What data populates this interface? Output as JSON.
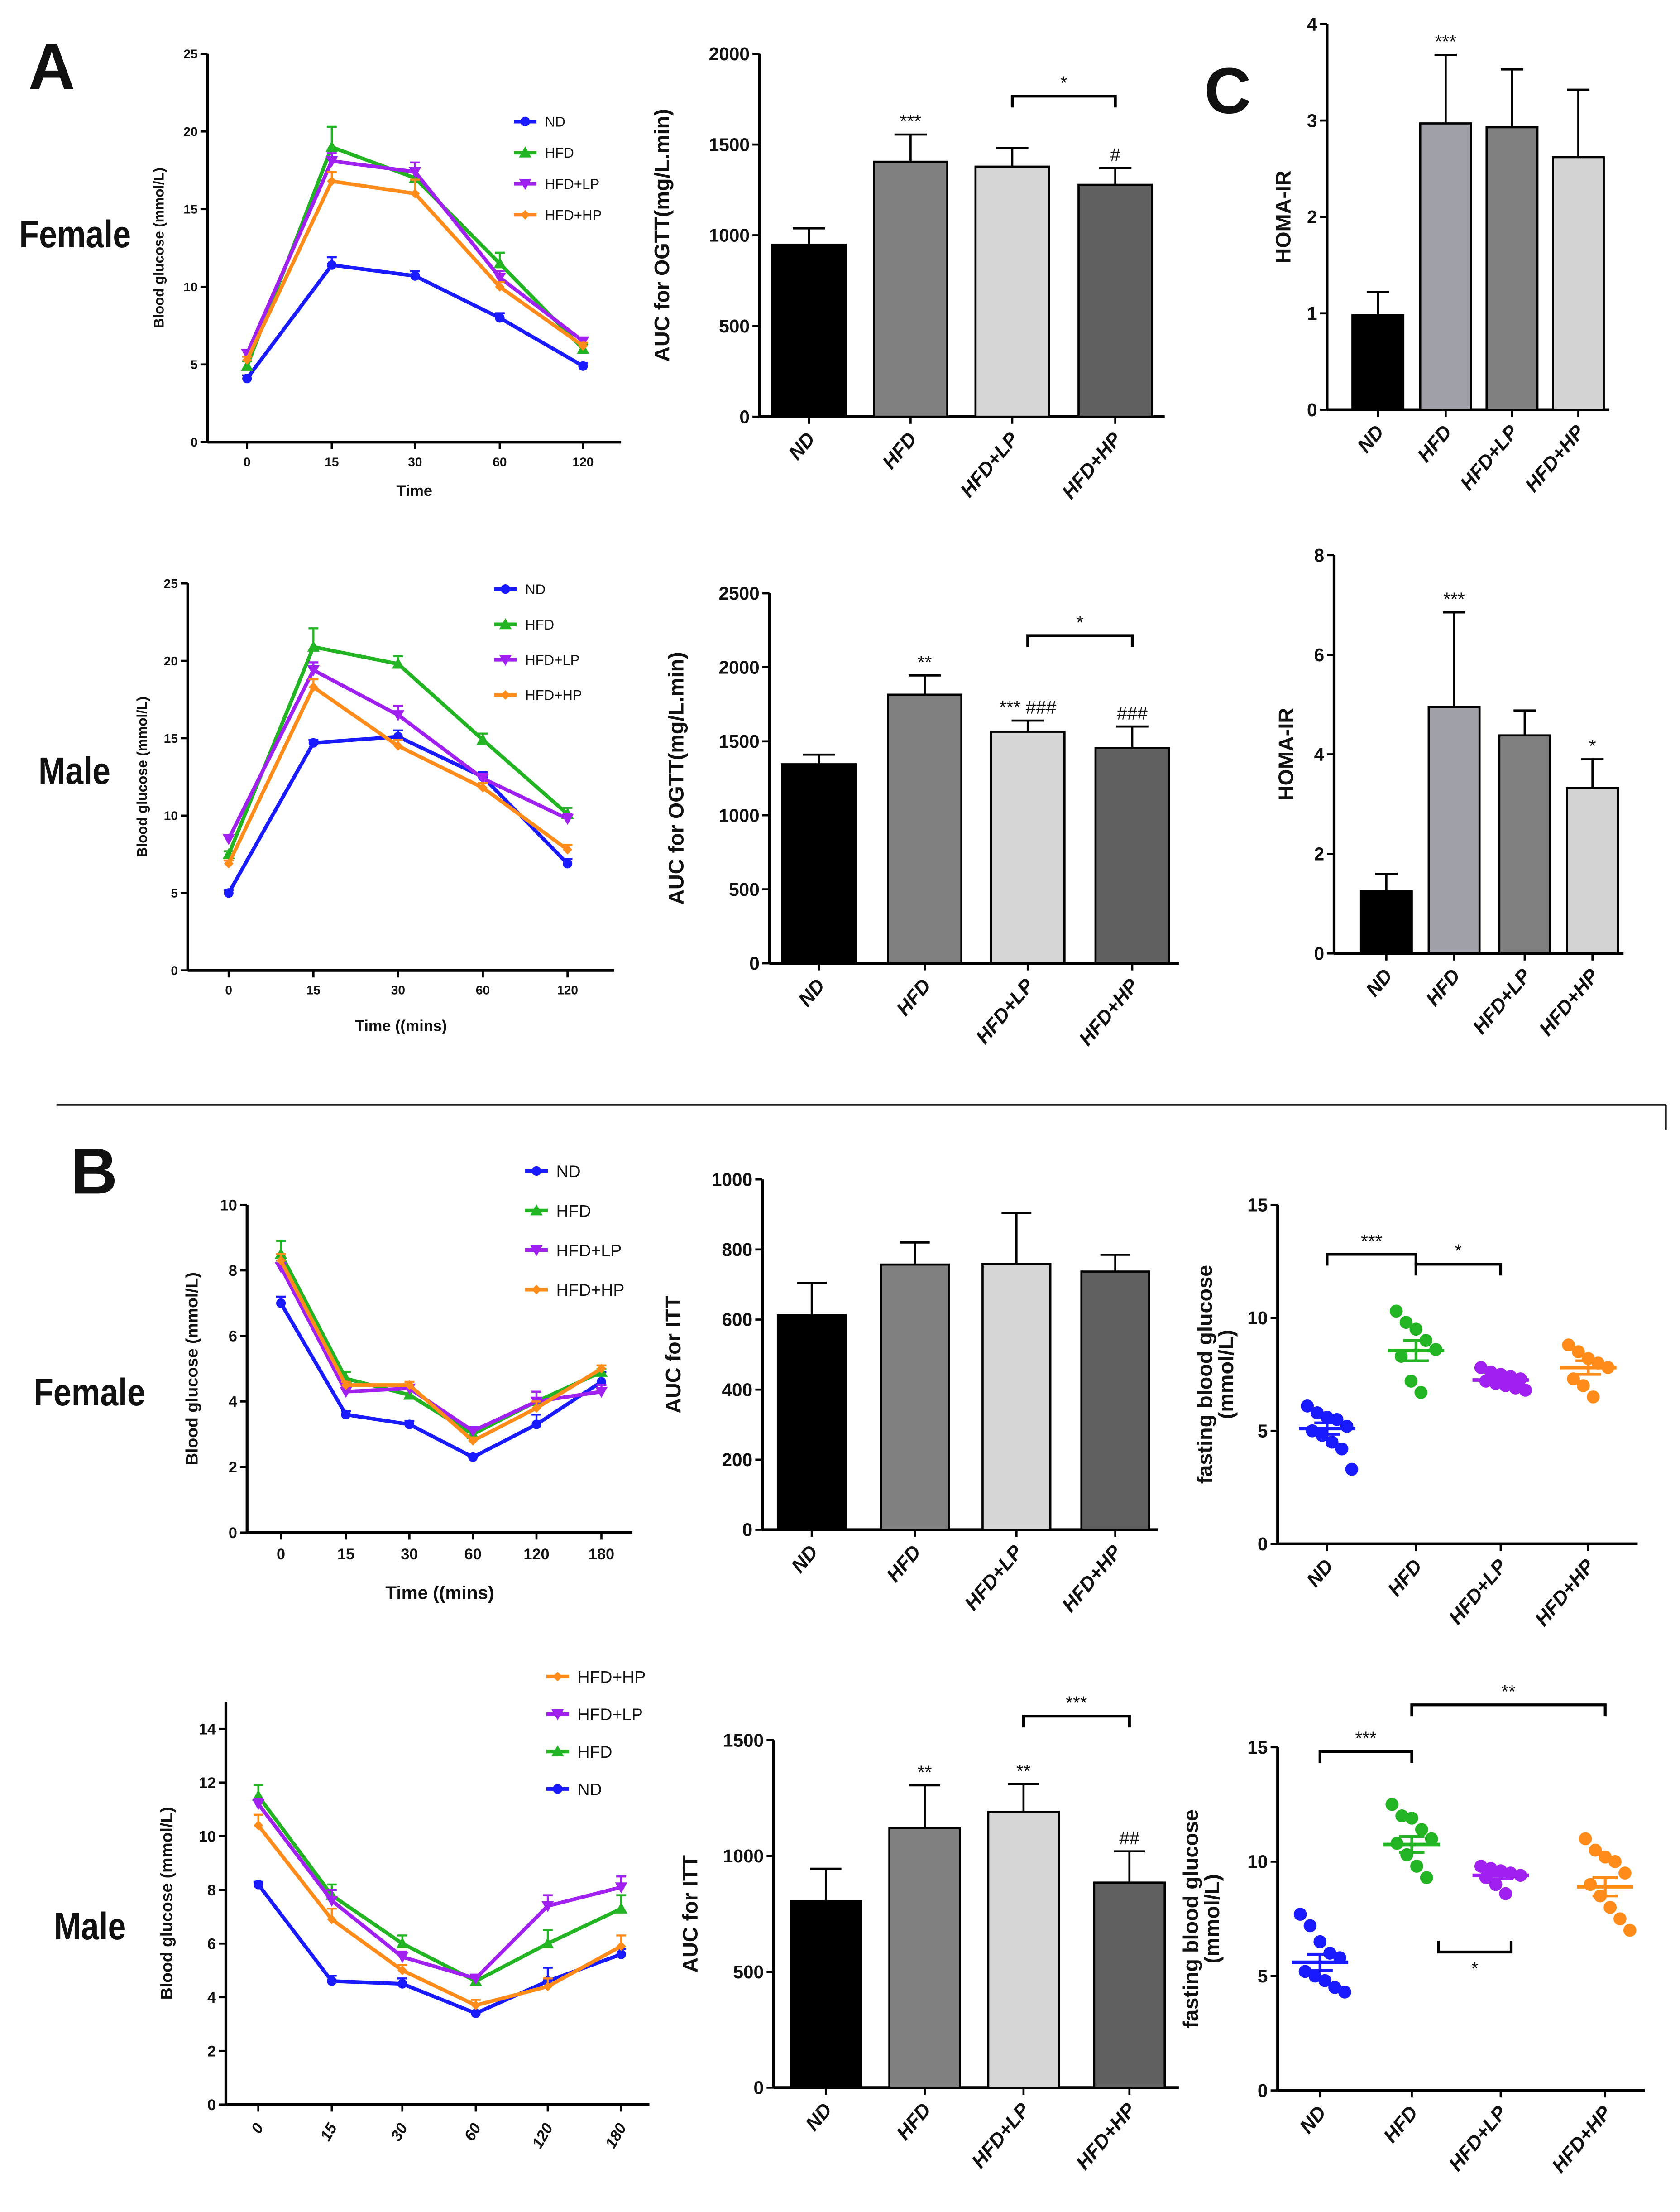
{
  "panels": {
    "A": "A",
    "B": "B",
    "C": "C"
  },
  "rows": {
    "a_female": "Female",
    "a_male": "Male",
    "b_female": "Female",
    "b_male": "Male"
  },
  "chart_data": [
    {
      "id": "ogtt_female",
      "type": "line",
      "ylabel": "Blood glucose (mmol/L)",
      "xlabel": "Time",
      "categories": [
        "0",
        "15",
        "30",
        "60",
        "120"
      ],
      "yticks": [
        0,
        5,
        10,
        15,
        20,
        25
      ],
      "ylim": [
        0,
        25
      ],
      "series": [
        {
          "name": "ND",
          "color": "#1a1aff",
          "marker": "circle",
          "values": [
            4.1,
            11.4,
            10.7,
            8.0,
            4.9
          ],
          "err": [
            0.2,
            0.5,
            0.3,
            0.3,
            0.2
          ]
        },
        {
          "name": "HFD",
          "color": "#22b422",
          "marker": "triangle-up",
          "values": [
            4.9,
            19.0,
            17.0,
            11.5,
            6.0
          ],
          "err": [
            0.3,
            1.3,
            0.6,
            0.7,
            0.3
          ]
        },
        {
          "name": "HFD+LP",
          "color": "#a020f0",
          "marker": "triangle-down",
          "values": [
            5.7,
            18.1,
            17.4,
            10.6,
            6.5
          ],
          "err": [
            0.2,
            0.5,
            0.6,
            0.4,
            0.2
          ]
        },
        {
          "name": "HFD+HP",
          "color": "#ff8c1a",
          "marker": "diamond",
          "values": [
            5.3,
            16.8,
            16.0,
            10.0,
            6.2
          ],
          "err": [
            0.2,
            0.6,
            0.9,
            0.3,
            0.2
          ]
        }
      ]
    },
    {
      "id": "auc_ogtt_female",
      "type": "bar",
      "ylabel": "AUC for OGTT(mg/L.min)",
      "categories": [
        "ND",
        "HFD",
        "HFD+LP",
        "HFD+HP"
      ],
      "yticks": [
        0,
        500,
        1000,
        1500,
        2000
      ],
      "ylim": [
        0,
        2000
      ],
      "values": [
        948,
        1405,
        1378,
        1278
      ],
      "err": [
        90,
        150,
        102,
        92
      ],
      "colors": [
        "#000000",
        "#808080",
        "#d6d6d6",
        "#606060"
      ],
      "annotations": [
        {
          "group": 1,
          "label": "***"
        },
        {
          "group": 3,
          "label": "#"
        }
      ],
      "brackets": [
        {
          "from": 2,
          "to": 3,
          "label": "*"
        }
      ]
    },
    {
      "id": "homa_female",
      "type": "bar",
      "ylabel": "HOMA-IR",
      "categories": [
        "ND",
        "HFD",
        "HFD+LP",
        "HFD+HP"
      ],
      "yticks": [
        0,
        1,
        2,
        3,
        4
      ],
      "ylim": [
        0,
        4
      ],
      "values": [
        0.98,
        2.97,
        2.93,
        2.62
      ],
      "err": [
        0.24,
        0.71,
        0.6,
        0.7
      ],
      "colors": [
        "#000000",
        "#a0a0a8",
        "#808080",
        "#d3d3d3"
      ],
      "annotations": [
        {
          "group": 1,
          "label": "***"
        }
      ],
      "brackets": []
    },
    {
      "id": "ogtt_male",
      "type": "line",
      "ylabel": "Blood glucose (mmol/L)",
      "xlabel": "Time  ((mins)",
      "categories": [
        "0",
        "15",
        "30",
        "60",
        "120"
      ],
      "yticks": [
        0,
        5,
        10,
        15,
        20,
        25
      ],
      "ylim": [
        0,
        25
      ],
      "series": [
        {
          "name": "ND",
          "color": "#1a1aff",
          "marker": "circle",
          "values": [
            5.0,
            14.7,
            15.1,
            12.5,
            6.9
          ],
          "err": [
            0.2,
            0.2,
            0.4,
            0.3,
            0.3
          ]
        },
        {
          "name": "HFD",
          "color": "#22b422",
          "marker": "triangle-up",
          "values": [
            7.5,
            20.9,
            19.8,
            14.9,
            10.1
          ],
          "err": [
            0.2,
            1.2,
            0.5,
            0.4,
            0.4
          ]
        },
        {
          "name": "HFD+LP",
          "color": "#a020f0",
          "marker": "triangle-down",
          "values": [
            8.5,
            19.4,
            16.5,
            12.4,
            9.8
          ],
          "err": [
            0.2,
            0.5,
            0.6,
            0.3,
            0.3
          ]
        },
        {
          "name": "HFD+HP",
          "color": "#ff8c1a",
          "marker": "diamond",
          "values": [
            6.9,
            18.3,
            14.5,
            11.8,
            7.8
          ],
          "err": [
            0.2,
            0.5,
            0.4,
            0.3,
            0.3
          ]
        }
      ]
    },
    {
      "id": "auc_ogtt_male",
      "type": "bar",
      "ylabel": "AUC for OGTT(mg/L.min)",
      "categories": [
        "ND",
        "HFD",
        "HFD+LP",
        "HFD+HP"
      ],
      "yticks": [
        0,
        500,
        1000,
        1500,
        2000,
        2500
      ],
      "ylim": [
        0,
        2500
      ],
      "values": [
        1345,
        1815,
        1565,
        1455
      ],
      "err": [
        65,
        130,
        75,
        145
      ],
      "colors": [
        "#000000",
        "#808080",
        "#d6d6d6",
        "#606060"
      ],
      "annotations": [
        {
          "group": 1,
          "label": "**"
        },
        {
          "group": 2,
          "label": "*** ###"
        },
        {
          "group": 3,
          "label": "###"
        }
      ],
      "brackets": [
        {
          "from": 2,
          "to": 3,
          "label": "*"
        }
      ]
    },
    {
      "id": "homa_male",
      "type": "bar",
      "ylabel": "HOMA-IR",
      "categories": [
        "ND",
        "HFD",
        "HFD+LP",
        "HFD+HP"
      ],
      "yticks": [
        0,
        2,
        4,
        6,
        8
      ],
      "ylim": [
        0,
        8
      ],
      "values": [
        1.25,
        4.95,
        4.38,
        3.32
      ],
      "err": [
        0.35,
        1.9,
        0.5,
        0.58
      ],
      "colors": [
        "#000000",
        "#a0a0a8",
        "#808080",
        "#d3d3d3"
      ],
      "annotations": [
        {
          "group": 1,
          "label": "***"
        },
        {
          "group": 3,
          "label": "*"
        }
      ],
      "brackets": []
    },
    {
      "id": "itt_female",
      "type": "line",
      "ylabel": "Blood glucose (mmol/L)",
      "xlabel": "Time  ((mins)",
      "categories": [
        "0",
        "15",
        "30",
        "60",
        "120",
        "180"
      ],
      "yticks": [
        0,
        2,
        4,
        6,
        8,
        10
      ],
      "ylim": [
        0,
        10
      ],
      "series": [
        {
          "name": "ND",
          "color": "#1a1aff",
          "marker": "circle",
          "values": [
            7.0,
            3.6,
            3.3,
            2.3,
            3.3,
            4.6
          ],
          "err": [
            0.2,
            0.1,
            0.1,
            0.1,
            0.3,
            0.3
          ]
        },
        {
          "name": "HFD",
          "color": "#22b422",
          "marker": "triangle-up",
          "values": [
            8.5,
            4.7,
            4.2,
            3.0,
            4.0,
            4.9
          ],
          "err": [
            0.4,
            0.2,
            0.2,
            0.1,
            0.3,
            0.1
          ]
        },
        {
          "name": "HFD+LP",
          "color": "#a020f0",
          "marker": "triangle-down",
          "values": [
            8.1,
            4.3,
            4.4,
            3.1,
            4.0,
            4.3
          ],
          "err": [
            0.2,
            0.2,
            0.1,
            0.1,
            0.3,
            0.2
          ]
        },
        {
          "name": "HFD+HP",
          "color": "#ff8c1a",
          "marker": "diamond",
          "values": [
            8.3,
            4.5,
            4.5,
            2.8,
            3.8,
            5.0
          ],
          "err": [
            0.2,
            0.1,
            0.1,
            0.1,
            0.2,
            0.1
          ]
        }
      ]
    },
    {
      "id": "auc_itt_female",
      "type": "bar",
      "ylabel": "AUC for ITT",
      "categories": [
        "ND",
        "HFD",
        "HFD+LP",
        "HFD+HP"
      ],
      "yticks": [
        0,
        200,
        400,
        600,
        800,
        1000
      ],
      "ylim": [
        0,
        1000
      ],
      "values": [
        612,
        757,
        758,
        737
      ],
      "err": [
        93,
        63,
        147,
        48
      ],
      "colors": [
        "#000000",
        "#808080",
        "#d6d6d6",
        "#606060"
      ],
      "annotations": [],
      "brackets": []
    },
    {
      "id": "fbg_female",
      "type": "scatter",
      "ylabel": [
        "fasting blood glucose",
        "(mmol/L)"
      ],
      "categories": [
        "ND",
        "HFD",
        "HFD+LP",
        "HFD+HP"
      ],
      "yticks": [
        0,
        5,
        10,
        15
      ],
      "ylim": [
        0,
        15
      ],
      "colors": [
        "#1a1aff",
        "#22b422",
        "#a020f0",
        "#ff8c1a"
      ],
      "groups": [
        {
          "points": [
            6.1,
            5.8,
            5.6,
            5.5,
            5.2,
            5.0,
            4.8,
            4.5,
            4.2,
            3.3
          ],
          "mean": 5.1,
          "sem": 0.25
        },
        {
          "points": [
            10.3,
            9.8,
            9.5,
            9.0,
            8.6,
            8.3,
            7.2,
            6.7
          ],
          "mean": 8.55,
          "sem": 0.45
        },
        {
          "points": [
            7.8,
            7.6,
            7.5,
            7.4,
            7.3,
            7.2,
            7.1,
            7.0,
            6.9,
            6.8
          ],
          "mean": 7.25,
          "sem": 0.15
        },
        {
          "points": [
            8.8,
            8.5,
            8.2,
            8.0,
            7.8,
            7.3,
            7.0,
            6.5
          ],
          "mean": 7.8,
          "sem": 0.3
        }
      ],
      "brackets": [
        {
          "from": 0,
          "to": 1,
          "label": "***"
        },
        {
          "from": 1,
          "to": 2,
          "label": "*"
        }
      ]
    },
    {
      "id": "itt_male",
      "type": "line",
      "ylabel": "Blood glucose (mmol/L)",
      "xlabel": "",
      "categories": [
        "0",
        "15",
        "30",
        "60",
        "120",
        "180"
      ],
      "yticks": [
        0,
        2,
        4,
        6,
        8,
        10,
        12,
        14
      ],
      "ylim": [
        0,
        15
      ],
      "legend_order": [
        3,
        2,
        1,
        0
      ],
      "series": [
        {
          "name": "ND",
          "color": "#1a1aff",
          "marker": "circle",
          "values": [
            8.2,
            4.6,
            4.5,
            3.4,
            4.6,
            5.6
          ],
          "err": [
            0.1,
            0.2,
            0.2,
            0.1,
            0.5,
            0.2
          ]
        },
        {
          "name": "HFD",
          "color": "#22b422",
          "marker": "triangle-up",
          "values": [
            11.5,
            7.8,
            6.0,
            4.6,
            6.0,
            7.3
          ],
          "err": [
            0.4,
            0.4,
            0.3,
            0.1,
            0.5,
            0.5
          ]
        },
        {
          "name": "HFD+LP",
          "color": "#a020f0",
          "marker": "triangle-down",
          "values": [
            11.2,
            7.6,
            5.5,
            4.7,
            7.4,
            8.1
          ],
          "err": [
            0.2,
            0.4,
            0.2,
            0.1,
            0.4,
            0.4
          ]
        },
        {
          "name": "HFD+HP",
          "color": "#ff8c1a",
          "marker": "diamond",
          "values": [
            10.4,
            6.9,
            5.0,
            3.7,
            4.4,
            5.9
          ],
          "err": [
            0.4,
            0.4,
            0.2,
            0.2,
            0.3,
            0.4
          ]
        }
      ]
    },
    {
      "id": "auc_itt_male",
      "type": "bar",
      "ylabel": "AUC for ITT",
      "categories": [
        "ND",
        "HFD",
        "HFD+LP",
        "HFD+HP"
      ],
      "yticks": [
        0,
        500,
        1000,
        1500
      ],
      "ylim": [
        0,
        1500
      ],
      "values": [
        805,
        1120,
        1190,
        885
      ],
      "err": [
        140,
        185,
        120,
        135
      ],
      "colors": [
        "#000000",
        "#808080",
        "#d6d6d6",
        "#606060"
      ],
      "annotations": [
        {
          "group": 1,
          "label": "**"
        },
        {
          "group": 2,
          "label": "**"
        },
        {
          "group": 3,
          "label": "##"
        }
      ],
      "brackets": [
        {
          "from": 2,
          "to": 3,
          "label": "***"
        }
      ]
    },
    {
      "id": "fbg_male",
      "type": "scatter",
      "ylabel": [
        "fasting blood glucose",
        "(mmol/L)"
      ],
      "categories": [
        "ND",
        "HFD",
        "HFD+LP",
        "HFD+HP"
      ],
      "yticks": [
        0,
        5,
        10,
        15
      ],
      "ylim": [
        0,
        15
      ],
      "colors": [
        "#1a1aff",
        "#22b422",
        "#a020f0",
        "#ff8c1a"
      ],
      "groups": [
        {
          "points": [
            7.7,
            7.2,
            6.5,
            6.0,
            5.8,
            5.2,
            5.0,
            4.8,
            4.5,
            4.3
          ],
          "mean": 5.6,
          "sem": 0.35
        },
        {
          "points": [
            12.5,
            12.0,
            11.9,
            11.4,
            11.0,
            10.8,
            10.3,
            9.8,
            9.3
          ],
          "mean": 10.75,
          "sem": 0.35
        },
        {
          "points": [
            9.8,
            9.7,
            9.6,
            9.5,
            9.4,
            9.3,
            9.0,
            8.6
          ],
          "mean": 9.4,
          "sem": 0.15
        },
        {
          "points": [
            11.0,
            10.5,
            10.2,
            10.0,
            9.5,
            9.0,
            8.5,
            8.0,
            7.5,
            7.0
          ],
          "mean": 8.9,
          "sem": 0.4
        }
      ],
      "brackets": [
        {
          "from": 0,
          "to": 1,
          "label": "***"
        },
        {
          "from": 1,
          "to": 3,
          "label": "**"
        },
        {
          "from": 1.3,
          "to": 2.1,
          "label": "*"
        }
      ]
    }
  ]
}
